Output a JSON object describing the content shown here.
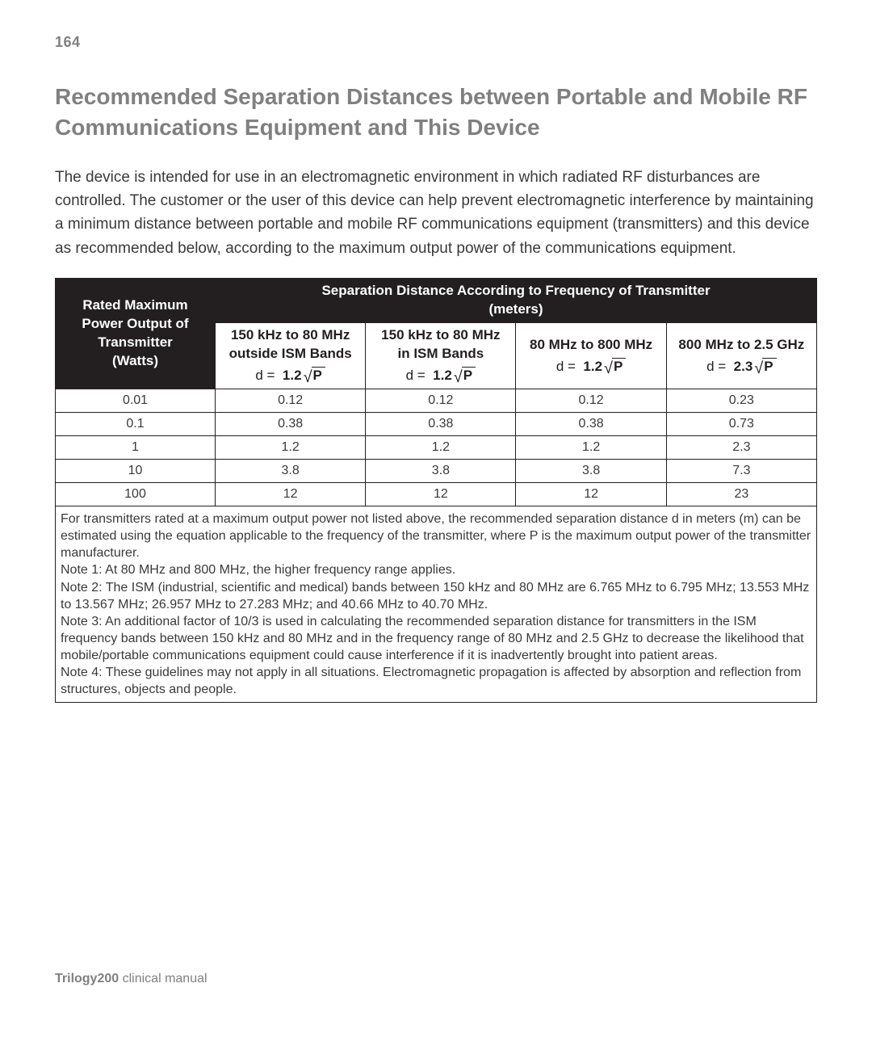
{
  "page_number": "164",
  "heading": "Recommended Separation Distances between Portable and Mobile RF Communications Equipment and This Device",
  "intro": "The device is intended for use in an electromagnetic environment in which radiated RF disturbances are controlled. The customer or the user of this device can help prevent electromagnetic interference by maintaining a minimum distance between portable and mobile RF communications equipment (transmitters) and this device as recommended below, according to the maximum output power of the communications equipment.",
  "table": {
    "header_left_line1": "Rated Maximum",
    "header_left_line2": "Power Output of",
    "header_left_line3": "Transmitter",
    "header_left_line4": "(Watts)",
    "header_right_line1": "Separation Distance According to Frequency of Transmitter",
    "header_right_line2": "(meters)",
    "freq_cols": [
      {
        "range": "150 kHz to 80 MHz",
        "sub": "outside ISM Bands",
        "coef": "1.2"
      },
      {
        "range": "150 kHz to 80 MHz",
        "sub": "in ISM Bands",
        "coef": "1.2"
      },
      {
        "range": "80 MHz to 800 MHz",
        "sub": "",
        "coef": "1.2"
      },
      {
        "range": "800 MHz to 2.5 GHz",
        "sub": "",
        "coef": "2.3"
      }
    ],
    "rows": [
      {
        "power": "0.01",
        "d": [
          "0.12",
          "0.12",
          "0.12",
          "0.23"
        ]
      },
      {
        "power": "0.1",
        "d": [
          "0.38",
          "0.38",
          "0.38",
          "0.73"
        ]
      },
      {
        "power": "1",
        "d": [
          "1.2",
          "1.2",
          "1.2",
          "2.3"
        ]
      },
      {
        "power": "10",
        "d": [
          "3.8",
          "3.8",
          "3.8",
          "7.3"
        ]
      },
      {
        "power": "100",
        "d": [
          "12",
          "12",
          "12",
          "23"
        ]
      }
    ],
    "notes": [
      "For transmitters rated at a maximum output power not listed above, the recommended separation distance d in meters (m) can be estimated using the equation applicable to the frequency of the transmitter, where P is the maximum output power of the transmitter manufacturer.",
      "Note 1:  At 80 MHz and 800 MHz, the higher frequency range applies.",
      "Note 2:  The ISM (industrial, scientific and medical) bands between 150 kHz and 80 MHz are 6.765 MHz to 6.795 MHz; 13.553 MHz to 13.567 MHz; 26.957 MHz to 27.283 MHz; and 40.66 MHz to 40.70 MHz.",
      "Note 3:  An additional factor of 10/3 is used in calculating the recommended separation distance for transmitters in the ISM frequency bands between 150 kHz and 80 MHz and in the frequency range of 80 MHz and 2.5 GHz to decrease the likelihood that mobile/portable communications equipment could cause interference if it is inadvertently brought into patient areas.",
      "Note 4:  These guidelines may not apply in all situations.  Electromagnetic propagation is affected by absorption and reflection from structures, objects and people."
    ]
  },
  "footer_bold": "Trilogy200",
  "footer_rest": " clinical manual",
  "formula_prefix": "d = ",
  "sqrt_arg": "P"
}
